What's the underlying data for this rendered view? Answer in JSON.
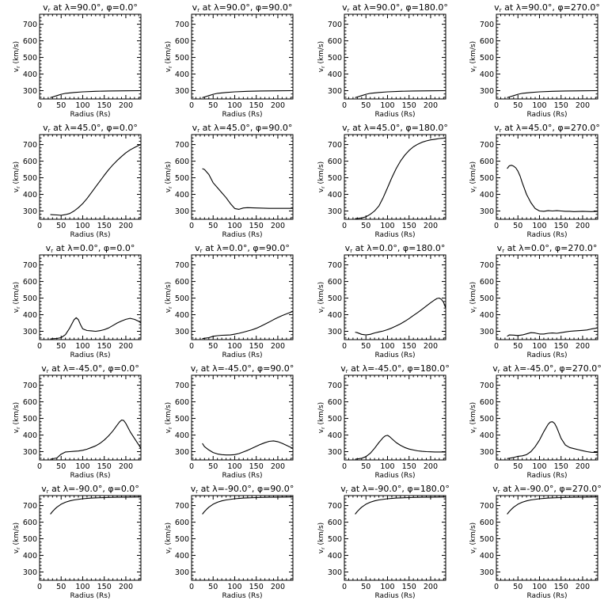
{
  "chart_data": {
    "type": "line",
    "layout": "5x4 grid of small line plots",
    "xlabel": "Radius (Rs)",
    "ylabel": "v_r (km/s)",
    "xlim": [
      0,
      235
    ],
    "ylim": [
      250,
      760
    ],
    "xticks": [
      0,
      50,
      100,
      150,
      200
    ],
    "yticks": [
      300,
      400,
      500,
      600,
      700
    ],
    "minor_xtick_step": 10,
    "minor_ytick_step": 20,
    "grid": false,
    "panels": [
      {
        "lambda": "90.0",
        "phi": "0.0",
        "x": [
          25,
          30,
          40,
          50,
          60,
          80,
          100,
          130,
          160,
          200,
          235
        ],
        "y": [
          258,
          262,
          270,
          278,
          284,
          289,
          293,
          296,
          298,
          299,
          300
        ]
      },
      {
        "lambda": "90.0",
        "phi": "90.0",
        "x": [
          25,
          30,
          40,
          50,
          60,
          80,
          100,
          130,
          160,
          200,
          235
        ],
        "y": [
          258,
          262,
          270,
          278,
          284,
          289,
          293,
          296,
          298,
          299,
          300
        ]
      },
      {
        "lambda": "90.0",
        "phi": "180.0",
        "x": [
          25,
          30,
          40,
          50,
          60,
          80,
          100,
          130,
          160,
          200,
          235
        ],
        "y": [
          258,
          262,
          270,
          278,
          284,
          289,
          293,
          296,
          298,
          299,
          300
        ]
      },
      {
        "lambda": "90.0",
        "phi": "270.0",
        "x": [
          25,
          30,
          40,
          50,
          60,
          80,
          100,
          130,
          160,
          200,
          235
        ],
        "y": [
          258,
          262,
          270,
          278,
          284,
          289,
          293,
          296,
          298,
          299,
          300
        ]
      },
      {
        "lambda": "45.0",
        "phi": "0.0",
        "x": [
          25,
          40,
          50,
          60,
          70,
          80,
          90,
          100,
          110,
          120,
          130,
          140,
          150,
          160,
          170,
          180,
          190,
          200,
          210,
          220,
          230,
          235
        ],
        "y": [
          278,
          276,
          274,
          278,
          285,
          300,
          320,
          345,
          375,
          410,
          445,
          480,
          515,
          548,
          578,
          604,
          628,
          650,
          668,
          682,
          695,
          700
        ]
      },
      {
        "lambda": "45.0",
        "phi": "90.0",
        "x": [
          25,
          30,
          40,
          50,
          60,
          70,
          80,
          90,
          100,
          110,
          120,
          130,
          150,
          180,
          200,
          220,
          235
        ],
        "y": [
          555,
          550,
          520,
          470,
          440,
          410,
          380,
          345,
          315,
          310,
          318,
          320,
          318,
          316,
          316,
          316,
          316
        ]
      },
      {
        "lambda": "45.0",
        "phi": "180.0",
        "x": [
          25,
          30,
          40,
          50,
          60,
          70,
          80,
          90,
          100,
          110,
          120,
          130,
          140,
          150,
          160,
          170,
          180,
          190,
          200,
          210,
          220,
          230,
          235
        ],
        "y": [
          255,
          255,
          258,
          265,
          280,
          300,
          330,
          380,
          440,
          500,
          555,
          600,
          636,
          664,
          686,
          702,
          714,
          722,
          728,
          732,
          736,
          738,
          740
        ]
      },
      {
        "lambda": "45.0",
        "phi": "270.0",
        "x": [
          25,
          30,
          35,
          40,
          45,
          50,
          55,
          60,
          70,
          80,
          90,
          100,
          110,
          120,
          130,
          140,
          150,
          160,
          170,
          180,
          200,
          220,
          235
        ],
        "y": [
          555,
          572,
          575,
          570,
          560,
          540,
          510,
          470,
          400,
          350,
          315,
          300,
          298,
          302,
          300,
          302,
          300,
          298,
          298,
          296,
          298,
          296,
          298
        ]
      },
      {
        "lambda": "0.0",
        "phi": "0.0",
        "x": [
          25,
          40,
          50,
          60,
          70,
          80,
          85,
          90,
          95,
          100,
          110,
          120,
          130,
          140,
          150,
          160,
          170,
          180,
          190,
          200,
          210,
          220,
          230,
          235
        ],
        "y": [
          255,
          257,
          262,
          280,
          320,
          370,
          382,
          370,
          340,
          315,
          305,
          303,
          300,
          304,
          310,
          320,
          335,
          350,
          362,
          372,
          378,
          372,
          360,
          350
        ]
      },
      {
        "lambda": "0.0",
        "phi": "90.0",
        "x": [
          25,
          40,
          50,
          60,
          70,
          80,
          90,
          100,
          110,
          120,
          130,
          140,
          150,
          160,
          170,
          180,
          190,
          200,
          210,
          220,
          230,
          235
        ],
        "y": [
          256,
          262,
          270,
          274,
          276,
          277,
          278,
          283,
          288,
          295,
          302,
          309,
          318,
          330,
          343,
          356,
          370,
          383,
          395,
          405,
          415,
          420
        ]
      },
      {
        "lambda": "0.0",
        "phi": "180.0",
        "x": [
          25,
          30,
          40,
          50,
          60,
          70,
          80,
          90,
          100,
          110,
          120,
          130,
          140,
          150,
          160,
          170,
          180,
          190,
          200,
          210,
          215,
          220,
          225,
          230,
          235
        ],
        "y": [
          295,
          292,
          282,
          278,
          282,
          290,
          296,
          302,
          310,
          320,
          332,
          345,
          360,
          377,
          395,
          413,
          432,
          452,
          472,
          490,
          498,
          500,
          492,
          475,
          440
        ]
      },
      {
        "lambda": "0.0",
        "phi": "270.0",
        "x": [
          25,
          30,
          40,
          50,
          60,
          70,
          80,
          90,
          100,
          110,
          120,
          130,
          140,
          150,
          160,
          170,
          180,
          190,
          200,
          210,
          220,
          230,
          235
        ],
        "y": [
          270,
          278,
          277,
          275,
          278,
          285,
          292,
          290,
          284,
          284,
          288,
          290,
          288,
          292,
          296,
          300,
          302,
          304,
          306,
          308,
          314,
          318,
          322
        ]
      },
      {
        "lambda": "-45.0",
        "phi": "0.0",
        "x": [
          25,
          40,
          50,
          60,
          70,
          80,
          90,
          100,
          110,
          120,
          130,
          140,
          150,
          160,
          170,
          180,
          185,
          190,
          195,
          200,
          210,
          220,
          230,
          235
        ],
        "y": [
          255,
          262,
          285,
          298,
          300,
          302,
          304,
          308,
          315,
          325,
          335,
          350,
          370,
          395,
          425,
          460,
          478,
          490,
          488,
          470,
          420,
          380,
          340,
          320
        ]
      },
      {
        "lambda": "-45.0",
        "phi": "90.0",
        "x": [
          25,
          30,
          40,
          50,
          60,
          70,
          80,
          90,
          100,
          110,
          120,
          130,
          140,
          150,
          160,
          170,
          180,
          190,
          200,
          210,
          220,
          230,
          235
        ],
        "y": [
          350,
          330,
          310,
          295,
          286,
          282,
          280,
          280,
          282,
          288,
          298,
          308,
          320,
          332,
          344,
          354,
          362,
          365,
          360,
          350,
          338,
          326,
          320
        ]
      },
      {
        "lambda": "-45.0",
        "phi": "180.0",
        "x": [
          25,
          40,
          50,
          60,
          70,
          80,
          90,
          95,
          100,
          105,
          110,
          120,
          130,
          140,
          150,
          160,
          170,
          180,
          190,
          200,
          210,
          220,
          235
        ],
        "y": [
          255,
          260,
          270,
          290,
          320,
          355,
          385,
          395,
          398,
          390,
          378,
          355,
          338,
          325,
          316,
          310,
          305,
          302,
          300,
          299,
          298,
          298,
          298
        ]
      },
      {
        "lambda": "-45.0",
        "phi": "270.0",
        "x": [
          25,
          40,
          50,
          60,
          70,
          80,
          90,
          100,
          110,
          120,
          125,
          130,
          135,
          140,
          150,
          160,
          170,
          180,
          190,
          200,
          210,
          220,
          235
        ],
        "y": [
          258,
          265,
          272,
          275,
          282,
          300,
          330,
          370,
          420,
          465,
          478,
          480,
          470,
          445,
          380,
          340,
          325,
          318,
          312,
          306,
          300,
          296,
          295
        ]
      },
      {
        "lambda": "-90.0",
        "phi": "0.0",
        "x": [
          25,
          30,
          35,
          40,
          50,
          60,
          70,
          80,
          100,
          120,
          150,
          180,
          210,
          235
        ],
        "y": [
          648,
          664,
          678,
          690,
          708,
          720,
          728,
          734,
          741,
          745,
          748,
          750,
          751,
          752
        ]
      },
      {
        "lambda": "-90.0",
        "phi": "90.0",
        "x": [
          25,
          30,
          35,
          40,
          50,
          60,
          70,
          80,
          100,
          120,
          150,
          180,
          210,
          235
        ],
        "y": [
          648,
          664,
          678,
          690,
          708,
          720,
          728,
          734,
          741,
          745,
          748,
          750,
          751,
          752
        ]
      },
      {
        "lambda": "-90.0",
        "phi": "180.0",
        "x": [
          25,
          30,
          35,
          40,
          50,
          60,
          70,
          80,
          100,
          120,
          150,
          180,
          210,
          235
        ],
        "y": [
          648,
          664,
          678,
          690,
          708,
          720,
          728,
          734,
          741,
          745,
          748,
          750,
          751,
          752
        ]
      },
      {
        "lambda": "-90.0",
        "phi": "270.0",
        "x": [
          25,
          30,
          35,
          40,
          50,
          60,
          70,
          80,
          100,
          120,
          150,
          180,
          210,
          235
        ],
        "y": [
          648,
          664,
          678,
          690,
          708,
          720,
          728,
          734,
          741,
          745,
          748,
          750,
          751,
          752
        ]
      }
    ]
  }
}
